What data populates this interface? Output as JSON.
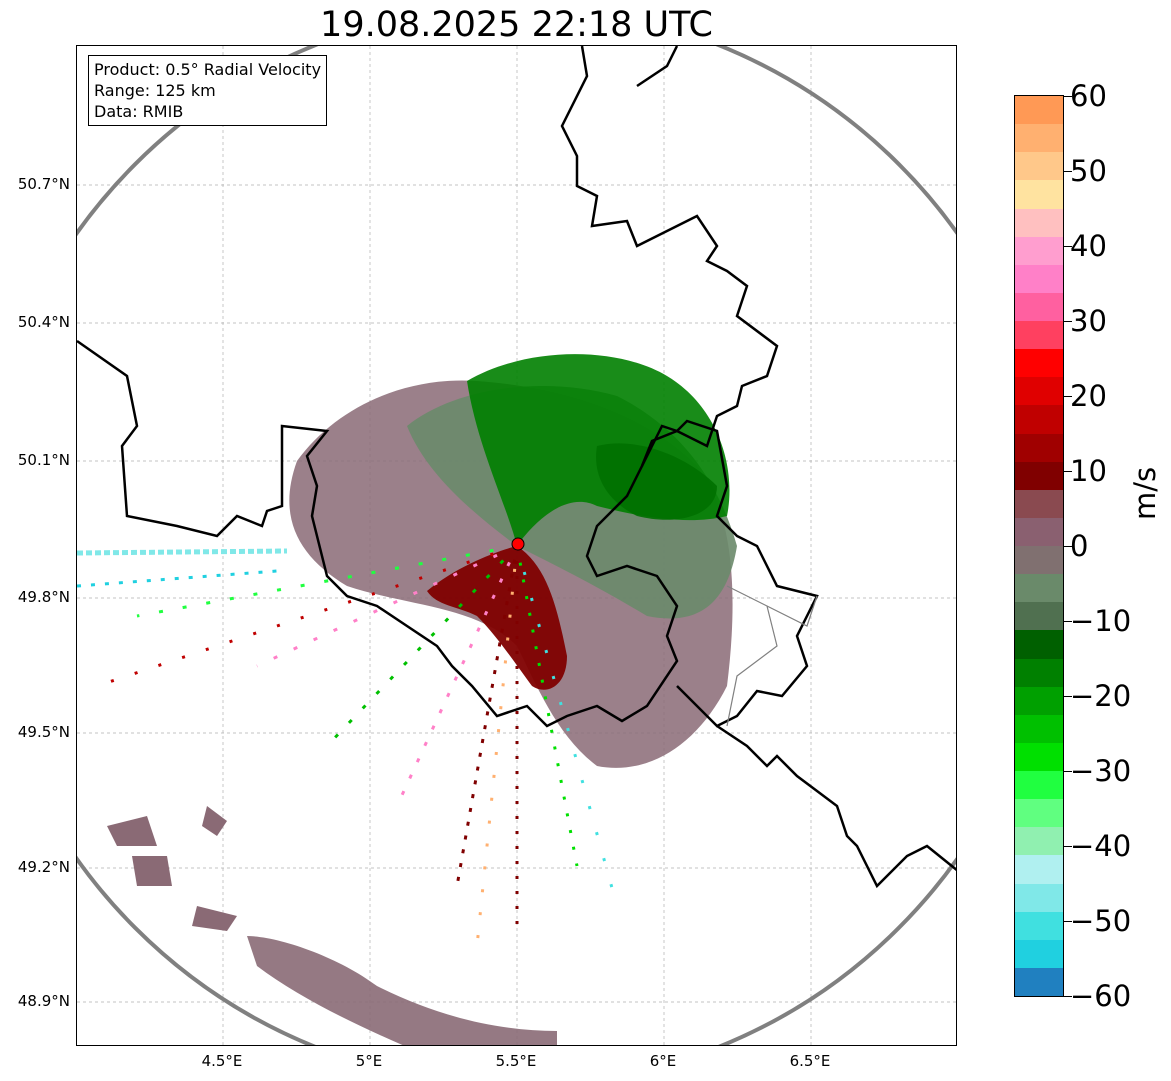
{
  "title": "19.08.2025 22:18 UTC",
  "info": {
    "product": "Product: 0.5° Radial Velocity",
    "range": "Range: 125 km",
    "data": "Data: RMIB"
  },
  "map": {
    "lat_labels": [
      "50.7°N",
      "50.4°N",
      "50.1°N",
      "49.8°N",
      "49.5°N",
      "49.2°N",
      "48.9°N"
    ],
    "lon_labels": [
      "4.5°E",
      "5°E",
      "5.5°E",
      "6°E",
      "6.5°E"
    ],
    "radar_site_color": "#ff0000",
    "border_color": "#000000",
    "range_ring_color": "#808080"
  },
  "colorbar": {
    "unit": "m/s",
    "min": -60,
    "max": 60,
    "tick_labels": [
      "60",
      "50",
      "40",
      "30",
      "20",
      "10",
      "0",
      "−10",
      "−20",
      "−30",
      "−40",
      "−50",
      "−60"
    ],
    "colors": [
      "#ff9955",
      "#ffb070",
      "#ffc88a",
      "#ffe3a0",
      "#ffc0c0",
      "#ff9ecf",
      "#ff80c8",
      "#ff60a0",
      "#ff4060",
      "#ff0000",
      "#e00000",
      "#c00000",
      "#a00000",
      "#800000",
      "#8a4a50",
      "#8a6070",
      "#807070",
      "#6a8a6a",
      "#507050",
      "#006000",
      "#008000",
      "#00a000",
      "#00c000",
      "#00e000",
      "#20ff40",
      "#60ff80",
      "#90f0b0",
      "#b0f0f0",
      "#80e8e8",
      "#40e0e0",
      "#20d0e0",
      "#2080c0"
    ]
  }
}
